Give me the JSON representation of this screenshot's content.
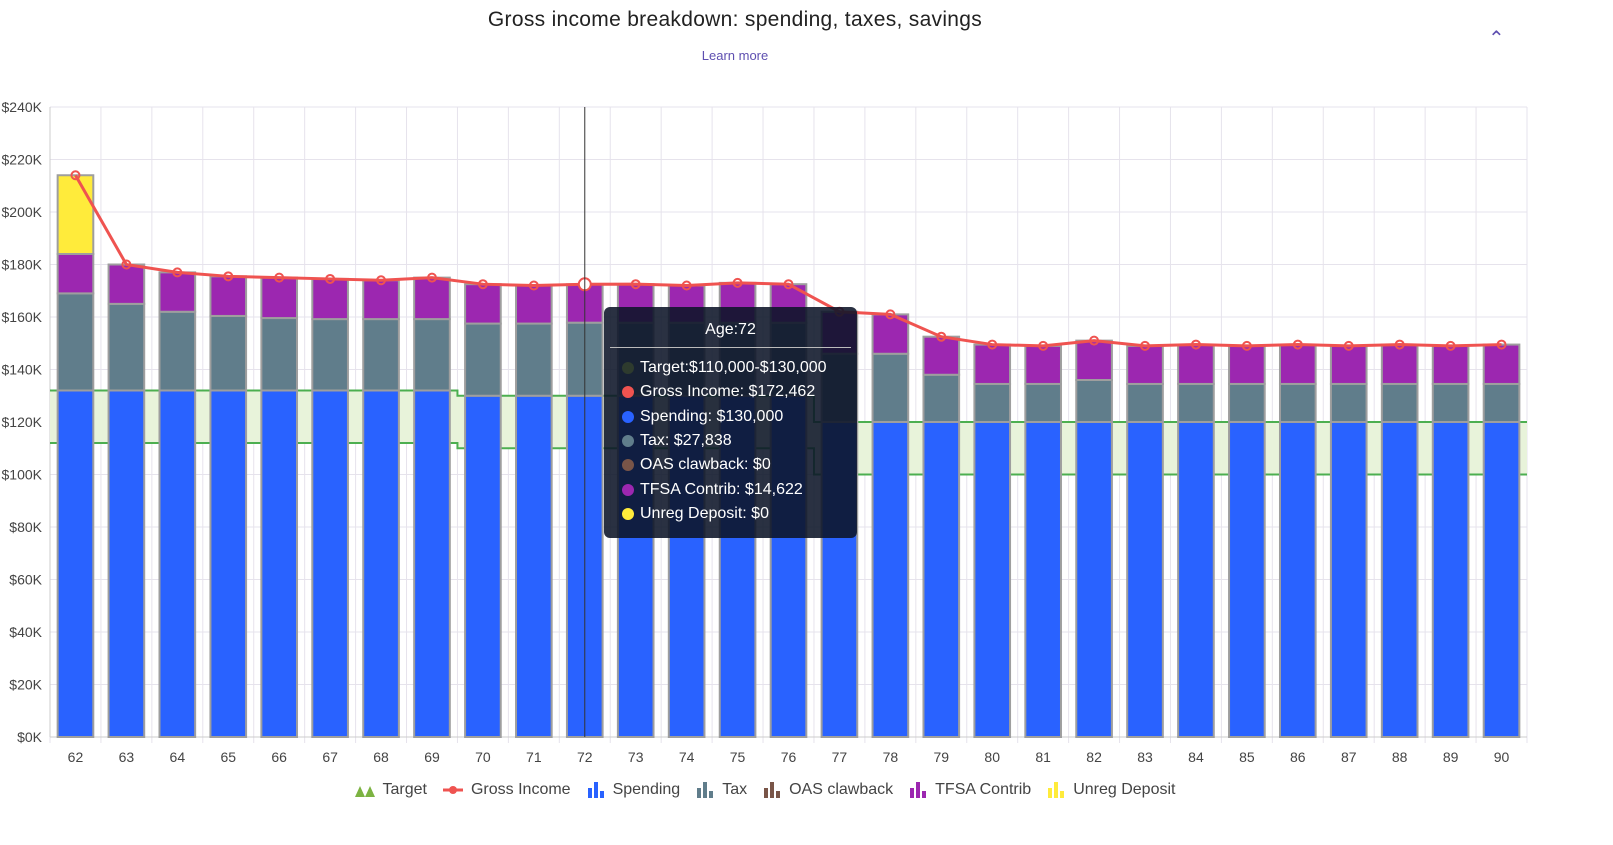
{
  "header": {
    "title": "Gross income breakdown: spending, taxes, savings",
    "learn_more": "Learn more",
    "collapse_icon": "chevron-up-icon"
  },
  "colors": {
    "target": "#7cb342",
    "gross": "#ef5350",
    "spending": "#2962ff",
    "tax": "#607d8b",
    "oas": "#795548",
    "tfsa": "#9c27b0",
    "unreg": "#ffeb3b"
  },
  "chart_data": {
    "type": "bar",
    "title": "Gross income breakdown: spending, taxes, savings",
    "stacked": true,
    "ylim": [
      0,
      240000
    ],
    "yticks": [
      "$0K",
      "$20K",
      "$40K",
      "$60K",
      "$80K",
      "$100K",
      "$120K",
      "$140K",
      "$160K",
      "$180K",
      "$200K",
      "$220K",
      "$240K"
    ],
    "grid": true,
    "legend_position": "bottom",
    "categories": [
      62,
      63,
      64,
      65,
      66,
      67,
      68,
      69,
      70,
      71,
      72,
      73,
      74,
      75,
      76,
      77,
      78,
      79,
      80,
      81,
      82,
      83,
      84,
      85,
      86,
      87,
      88,
      89,
      90
    ],
    "target_low": [
      112000,
      112000,
      112000,
      112000,
      112000,
      112000,
      112000,
      112000,
      110000,
      110000,
      110000,
      110000,
      110000,
      110000,
      110000,
      100000,
      100000,
      100000,
      100000,
      100000,
      100000,
      100000,
      100000,
      100000,
      100000,
      100000,
      100000,
      100000,
      100000
    ],
    "target_high": [
      132000,
      132000,
      132000,
      132000,
      132000,
      132000,
      132000,
      132000,
      130000,
      130000,
      130000,
      130000,
      130000,
      130000,
      130000,
      120000,
      120000,
      120000,
      120000,
      120000,
      120000,
      120000,
      120000,
      120000,
      120000,
      120000,
      120000,
      120000,
      120000
    ],
    "series": [
      {
        "name": "Spending",
        "type": "bar",
        "values": [
          132000,
          132000,
          132000,
          132000,
          132000,
          132000,
          132000,
          132000,
          130000,
          130000,
          130000,
          130000,
          130000,
          130000,
          130000,
          120000,
          120000,
          120000,
          120000,
          120000,
          120000,
          120000,
          120000,
          120000,
          120000,
          120000,
          120000,
          120000,
          120000
        ]
      },
      {
        "name": "Tax",
        "type": "bar",
        "values": [
          37000,
          33000,
          30000,
          28400,
          27600,
          27200,
          27200,
          27200,
          27500,
          27500,
          27838,
          27800,
          27800,
          27800,
          27800,
          26000,
          26000,
          18000,
          14500,
          14500,
          16000,
          14500,
          14500,
          14500,
          14500,
          14500,
          14500,
          14500,
          14500
        ]
      },
      {
        "name": "OAS clawback",
        "type": "bar",
        "values": [
          0,
          0,
          0,
          0,
          0,
          0,
          0,
          0,
          0,
          0,
          0,
          0,
          0,
          0,
          0,
          0,
          0,
          0,
          0,
          0,
          0,
          0,
          0,
          0,
          0,
          0,
          0,
          0,
          0
        ]
      },
      {
        "name": "TFSA Contrib",
        "type": "bar",
        "values": [
          15000,
          15000,
          15000,
          15100,
          15400,
          15300,
          14800,
          15800,
          15000,
          14500,
          14622,
          14700,
          14200,
          15200,
          14700,
          16000,
          15000,
          14500,
          15000,
          14500,
          15000,
          14500,
          15000,
          14500,
          15000,
          14500,
          15000,
          14500,
          15000
        ]
      },
      {
        "name": "Unreg Deposit",
        "type": "bar",
        "values": [
          30000,
          0,
          0,
          0,
          0,
          0,
          0,
          0,
          0,
          0,
          0,
          0,
          0,
          0,
          0,
          0,
          0,
          0,
          0,
          0,
          0,
          0,
          0,
          0,
          0,
          0,
          0,
          0,
          0
        ]
      },
      {
        "name": "Gross Income",
        "type": "line",
        "values": [
          214000,
          180000,
          177000,
          175500,
          175000,
          174500,
          174000,
          175000,
          172500,
          172000,
          172462,
          172500,
          172000,
          173000,
          172500,
          162000,
          161000,
          152500,
          149500,
          149000,
          151000,
          149000,
          149500,
          149000,
          149500,
          149000,
          149500,
          149000,
          149500
        ]
      }
    ],
    "target_name": "Target",
    "hover_age": 72
  },
  "tooltip": {
    "title": "Age:72",
    "rows": [
      {
        "label": "Target:$110,000-$130,000",
        "color": "#2e3b2e"
      },
      {
        "label": "Gross Income: $172,462",
        "color": "#ef5350"
      },
      {
        "label": "Spending: $130,000",
        "color": "#2962ff"
      },
      {
        "label": "Tax: $27,838",
        "color": "#607d8b"
      },
      {
        "label": "OAS clawback: $0",
        "color": "#795548"
      },
      {
        "label": "TFSA Contrib: $14,622",
        "color": "#9c27b0"
      },
      {
        "label": "Unreg Deposit: $0",
        "color": "#ffeb3b"
      }
    ]
  },
  "legend": [
    {
      "label": "Target",
      "color": "#7cb342",
      "icon": "area-icon"
    },
    {
      "label": "Gross Income",
      "color": "#ef5350",
      "icon": "line-icon"
    },
    {
      "label": "Spending",
      "color": "#2962ff",
      "icon": "bar-icon"
    },
    {
      "label": "Tax",
      "color": "#607d8b",
      "icon": "bar-icon"
    },
    {
      "label": "OAS clawback",
      "color": "#795548",
      "icon": "bar-icon"
    },
    {
      "label": "TFSA Contrib",
      "color": "#9c27b0",
      "icon": "bar-icon"
    },
    {
      "label": "Unreg Deposit",
      "color": "#ffeb3b",
      "icon": "bar-icon"
    }
  ]
}
